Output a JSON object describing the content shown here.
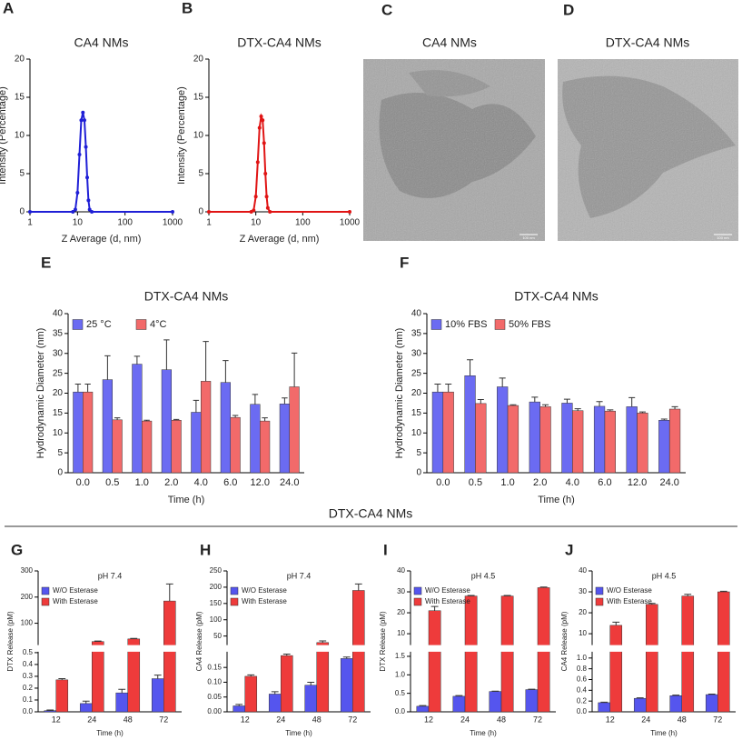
{
  "chart_data": [
    {
      "label": "A",
      "type": "line",
      "title": "CA4 NMs",
      "xlabel": "Z Average (d, nm)",
      "ylabel": "Intensity (Percentage)",
      "xscale": "log",
      "xlim": [
        1,
        1000
      ],
      "xticks": [
        1,
        10,
        100,
        1000
      ],
      "ylim": [
        0,
        20
      ],
      "yticks": [
        0,
        5,
        10,
        15,
        20
      ],
      "color": "#1f1fd6",
      "x": [
        1,
        8,
        9,
        10,
        11,
        12,
        13,
        14,
        15,
        16,
        17,
        18,
        20,
        1000
      ],
      "values": [
        0,
        0,
        0.3,
        2.5,
        7.5,
        12,
        13,
        12,
        8.5,
        4.5,
        1.5,
        0.3,
        0,
        0
      ]
    },
    {
      "label": "B",
      "type": "line",
      "title": "DTX-CA4 NMs",
      "xlabel": "Z Average (d, nm)",
      "ylabel": "Intensity (Percentage)",
      "xscale": "log",
      "xlim": [
        1,
        1000
      ],
      "xticks": [
        1,
        10,
        100,
        1000
      ],
      "ylim": [
        0,
        20
      ],
      "yticks": [
        0,
        5,
        10,
        15,
        20
      ],
      "color": "#e01414",
      "x": [
        1,
        8,
        9,
        10,
        11,
        12,
        13,
        14,
        15,
        16,
        17,
        18,
        20,
        1000
      ],
      "values": [
        0,
        0,
        0.2,
        2,
        6.5,
        11,
        12.5,
        12,
        9,
        5,
        2,
        0.5,
        0,
        0
      ]
    },
    {
      "label": "E",
      "type": "bar",
      "title": "DTX-CA4 NMs",
      "xlabel": "Time (h)",
      "ylabel": "Hydrodynamic Diameter (nm)",
      "categories": [
        "0.0",
        "0.5",
        "1.0",
        "2.0",
        "4.0",
        "6.0",
        "12.0",
        "24.0"
      ],
      "ylim": [
        0,
        40
      ],
      "yticks": [
        0,
        5,
        10,
        15,
        20,
        25,
        30,
        35,
        40
      ],
      "legend": "upper left",
      "legend_orientation": "horizontal",
      "series": [
        {
          "name": "25 °C",
          "color": "#6b6bf2",
          "values": [
            20.3,
            23.4,
            27.3,
            25.9,
            15.2,
            22.7,
            17.2,
            17.3
          ],
          "errors": [
            2,
            6,
            2,
            7.5,
            3,
            5.5,
            2.5,
            1.5
          ]
        },
        {
          "name": "4°C",
          "color": "#f26a6a",
          "values": [
            20.3,
            13.3,
            13.0,
            13.2,
            23.0,
            13.9,
            13.0,
            21.6
          ],
          "errors": [
            2,
            0.5,
            0.2,
            0.2,
            10,
            0.5,
            0.8,
            8.5
          ]
        }
      ]
    },
    {
      "label": "F",
      "type": "bar",
      "title": "DTX-CA4 NMs",
      "xlabel": "Time (h)",
      "ylabel": "Hydrodynamic Diameter (nm)",
      "categories": [
        "0.0",
        "0.5",
        "1.0",
        "2.0",
        "4.0",
        "6.0",
        "12.0",
        "24.0"
      ],
      "ylim": [
        0,
        40
      ],
      "yticks": [
        0,
        5,
        10,
        15,
        20,
        25,
        30,
        35,
        40
      ],
      "legend": "upper left",
      "legend_orientation": "horizontal",
      "series": [
        {
          "name": "10% FBS",
          "color": "#6b6bf2",
          "values": [
            20.3,
            24.4,
            21.6,
            17.8,
            17.5,
            16.7,
            16.6,
            13.2
          ],
          "errors": [
            2,
            4,
            2.2,
            1.2,
            1,
            1.2,
            2.3,
            0.3
          ]
        },
        {
          "name": "50% FBS",
          "color": "#f26a6a",
          "values": [
            20.3,
            17.4,
            16.9,
            16.6,
            15.6,
            15.5,
            15.0,
            16.0
          ],
          "errors": [
            2,
            1,
            0.2,
            0.5,
            0.5,
            0.3,
            0.3,
            0.6
          ]
        }
      ]
    },
    {
      "label": "G",
      "type": "bar",
      "subtitle": "pH 7.4",
      "xlabel": "Time (h)",
      "ylabel": "DTX Release (pM)",
      "categories": [
        "12",
        "24",
        "48",
        "72"
      ],
      "ylim": [
        0,
        300
      ],
      "ybreak": [
        0.5,
        20
      ],
      "yticks": [
        {
          "value": 0,
          "label": "0.0"
        },
        0.1,
        0.2,
        0.3,
        0.4,
        0.5,
        100,
        200,
        300
      ],
      "legend": "upper left",
      "legend_orientation": "vertical",
      "series": [
        {
          "name": "W/O Esterase",
          "color": "#5555ee",
          "values": [
            0.01,
            0.07,
            0.16,
            0.28
          ],
          "errors": [
            0.005,
            0.02,
            0.03,
            0.03
          ]
        },
        {
          "name": "With Esterase",
          "color": "#ee3b3b",
          "values": [
            0.27,
            30,
            40,
            185
          ],
          "errors": [
            0.01,
            2,
            2,
            65
          ]
        }
      ]
    },
    {
      "label": "H",
      "type": "bar",
      "subtitle": "pH 7.4",
      "xlabel": "Time (h)",
      "ylabel": "CA4 Release (pM)",
      "categories": [
        "12",
        "24",
        "48",
        "72"
      ],
      "ylim": [
        0,
        250
      ],
      "ybreak": [
        0.2,
        25
      ],
      "yticks": [
        {
          "value": 0,
          "label": "0.00"
        },
        0.05,
        {
          "value": 0.1,
          "label": "0.10"
        },
        0.15,
        50,
        100,
        150,
        200,
        250
      ],
      "legend": "upper left",
      "legend_orientation": "vertical",
      "series": [
        {
          "name": "W/O Esterase",
          "color": "#5555ee",
          "values": [
            0.02,
            0.06,
            0.09,
            0.18
          ],
          "errors": [
            0.005,
            0.008,
            0.01,
            0.005
          ]
        },
        {
          "name": "With Esterase",
          "color": "#ee3b3b",
          "values": [
            0.12,
            0.19,
            30,
            190
          ],
          "errors": [
            0.005,
            0.005,
            5,
            20
          ]
        }
      ]
    },
    {
      "label": "I",
      "type": "bar",
      "subtitle": "pH 4.5",
      "xlabel": "Time (h)",
      "ylabel": "DTX Release (pM)",
      "categories": [
        "12",
        "24",
        "48",
        "72"
      ],
      "ylim": [
        0,
        40
      ],
      "ybreak": [
        1.6,
        5
      ],
      "yticks": [
        {
          "value": 0,
          "label": "0.0"
        },
        0.5,
        {
          "value": 1,
          "label": "1.0"
        },
        1.5,
        10,
        20,
        30,
        40
      ],
      "legend": "upper left",
      "legend_orientation": "vertical",
      "series": [
        {
          "name": "W/O Esterase",
          "color": "#5555ee",
          "values": [
            0.15,
            0.42,
            0.55,
            0.6
          ],
          "errors": [
            0.02,
            0.02,
            0.01,
            0.01
          ]
        },
        {
          "name": "With Esterase",
          "color": "#ee3b3b",
          "values": [
            21,
            28,
            28,
            32
          ],
          "errors": [
            2,
            0.3,
            0.3,
            0.3
          ]
        }
      ]
    },
    {
      "label": "J",
      "type": "bar",
      "subtitle": "pH 4.5",
      "xlabel": "Time (h)",
      "ylabel": "CA4 Release (pM)",
      "categories": [
        "12",
        "24",
        "48",
        "72"
      ],
      "ylim": [
        0,
        40
      ],
      "ybreak": [
        1.1,
        5
      ],
      "yticks": [
        {
          "value": 0,
          "label": "0.0"
        },
        0.2,
        0.4,
        0.6,
        0.8,
        {
          "value": 1,
          "label": "1.0"
        },
        10,
        20,
        30,
        40
      ],
      "legend": "upper left",
      "legend_orientation": "vertical",
      "series": [
        {
          "name": "W/O Esterase",
          "color": "#5555ee",
          "values": [
            0.17,
            0.25,
            0.3,
            0.32
          ],
          "errors": [
            0.01,
            0.01,
            0.01,
            0.01
          ]
        },
        {
          "name": "With Esterase",
          "color": "#ee3b3b",
          "values": [
            14,
            24,
            28,
            30
          ],
          "errors": [
            1.5,
            0.5,
            0.8,
            0.3
          ]
        }
      ]
    }
  ],
  "images": [
    {
      "label": "C",
      "title": "CA4 NMs",
      "scale_label": "100 nm"
    },
    {
      "label": "D",
      "title": "DTX-CA4 NMs",
      "scale_label": "100 nm"
    }
  ],
  "section_title": "DTX-CA4 NMs"
}
